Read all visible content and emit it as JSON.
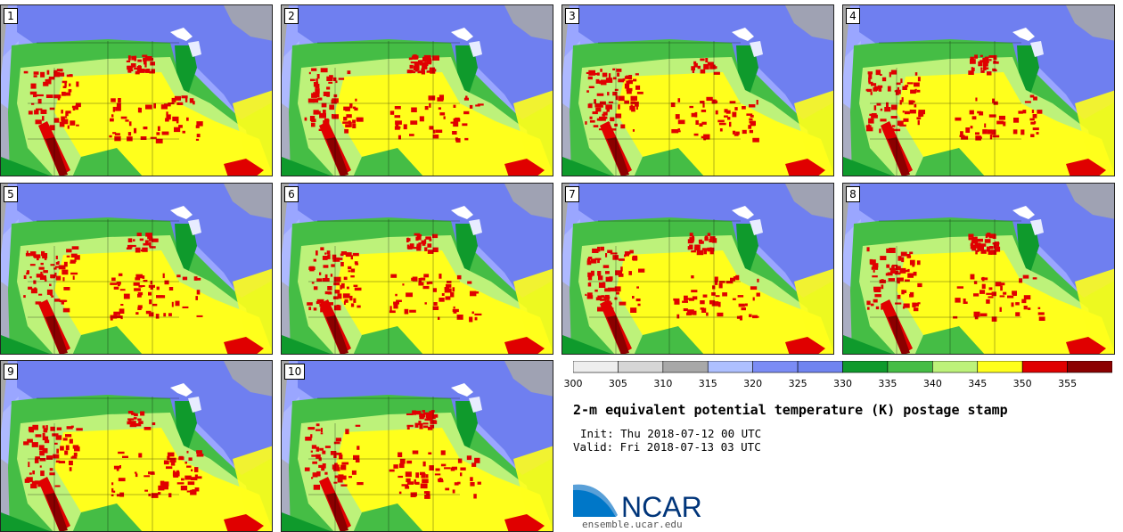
{
  "panels": [
    {
      "number": "1"
    },
    {
      "number": "2"
    },
    {
      "number": "3"
    },
    {
      "number": "4"
    },
    {
      "number": "5"
    },
    {
      "number": "6"
    },
    {
      "number": "7"
    },
    {
      "number": "8"
    },
    {
      "number": "9"
    },
    {
      "number": "10"
    }
  ],
  "colorbar": {
    "colors": [
      "#eeeeee",
      "#d6d6d6",
      "#a8a8a8",
      "#aec0ff",
      "#7b8cf5",
      "#7084f0",
      "#0f9a2c",
      "#45bd45",
      "#bdf27a",
      "#ffff1c",
      "#e00000",
      "#8b0000"
    ],
    "ticks": [
      "300",
      "305",
      "310",
      "315",
      "320",
      "325",
      "330",
      "335",
      "340",
      "345",
      "350",
      "355"
    ]
  },
  "map_colors": {
    "ocean": "#9aa6ff",
    "ocean_near": "#aeb9ff",
    "north": "#6f7ff0",
    "gray": "#a8a8a8",
    "green_dark": "#0f9a2c",
    "green_mid": "#45bd45",
    "green_light": "#bdf27a",
    "yellow": "#ffff1c",
    "red": "#e00000",
    "dark_red": "#8b0000",
    "lakes": "#ffffff"
  },
  "title": "2-m equivalent potential temperature (K) postage stamp",
  "init": "Init: Thu 2018-07-12 00 UTC",
  "valid": "Valid: Fri 2018-07-13 03 UTC",
  "logo": {
    "text": "NCAR",
    "color": "#00357a",
    "swoosh": "#0077c8"
  },
  "url": "ensemble.ucar.edu"
}
